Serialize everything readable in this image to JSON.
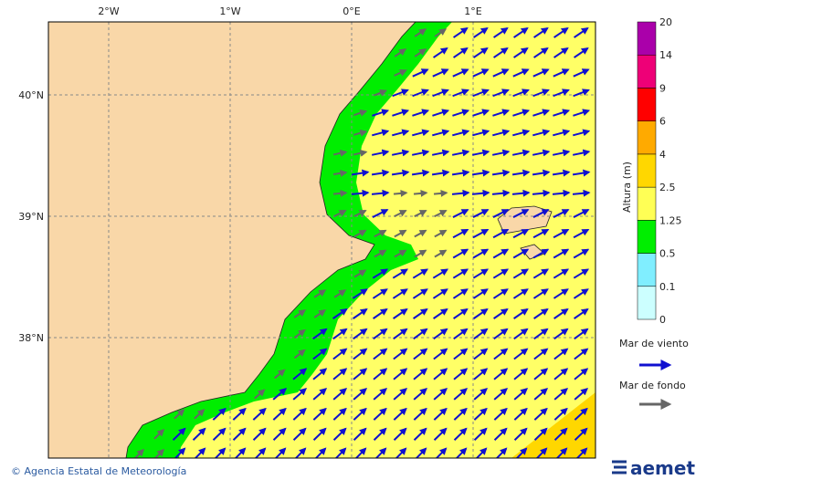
{
  "map": {
    "lon_labels": [
      "2°W",
      "1°W",
      "0°E",
      "1°E"
    ],
    "lat_labels": [
      "40°N",
      "39°N",
      "38°N"
    ]
  },
  "colorbar": {
    "title": "Altura (m)",
    "levels": [
      0,
      0.1,
      0.5,
      1.25,
      2.5,
      4,
      6,
      9,
      14,
      20
    ],
    "colors": [
      "#ccffff",
      "#80eeff",
      "#00ee00",
      "#ffff55",
      "#ffd700",
      "#ffaa00",
      "#ff0000",
      "#ee0077",
      "#aa00aa"
    ]
  },
  "legend": {
    "wind_sea": "Mar de viento",
    "swell": "Mar de fondo"
  },
  "footer": {
    "credit": "© Agencia Estatal de Meteorología",
    "logo": "aemet"
  }
}
